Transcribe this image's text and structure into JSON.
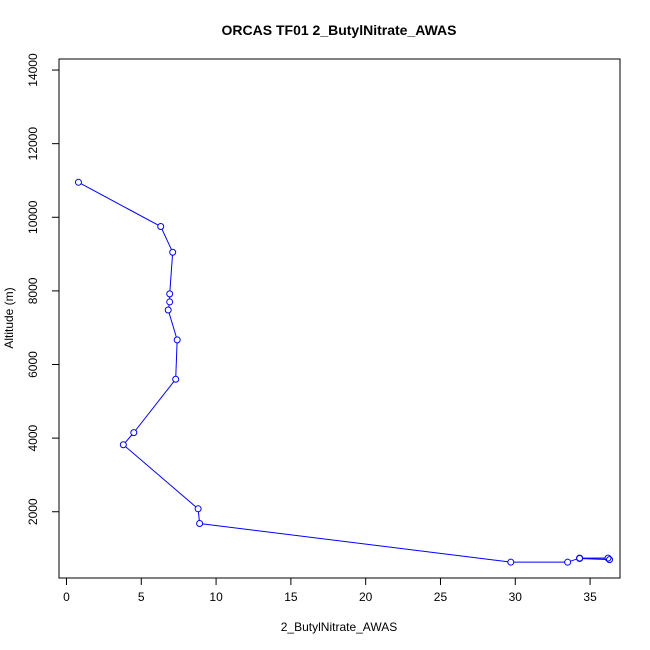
{
  "chart_data": {
    "type": "scatter",
    "title": "ORCAS TF01 2_ButylNitrate_AWAS",
    "xlabel": "2_ButylNitrate_AWAS",
    "ylabel": "Altitude (m)",
    "xlim": [
      -0.5,
      37
    ],
    "ylim": [
      200,
      14300
    ],
    "xticks": [
      0,
      5,
      10,
      15,
      20,
      25,
      30,
      35
    ],
    "yticks": [
      2000,
      4000,
      6000,
      8000,
      10000,
      12000,
      14000
    ],
    "grid": false,
    "color": "#0000ff",
    "series": [
      {
        "x": [
          0.8,
          6.3,
          7.1,
          6.9,
          6.9,
          6.8,
          7.4,
          7.3,
          4.5,
          3.8,
          8.8,
          8.9,
          29.7,
          33.5,
          34.3,
          36.2,
          34.3,
          36.3
        ],
        "y": [
          10950,
          9750,
          9050,
          7920,
          7700,
          7480,
          6670,
          5600,
          4150,
          3820,
          2080,
          1680,
          630,
          630,
          740,
          740,
          730,
          700
        ]
      }
    ]
  }
}
